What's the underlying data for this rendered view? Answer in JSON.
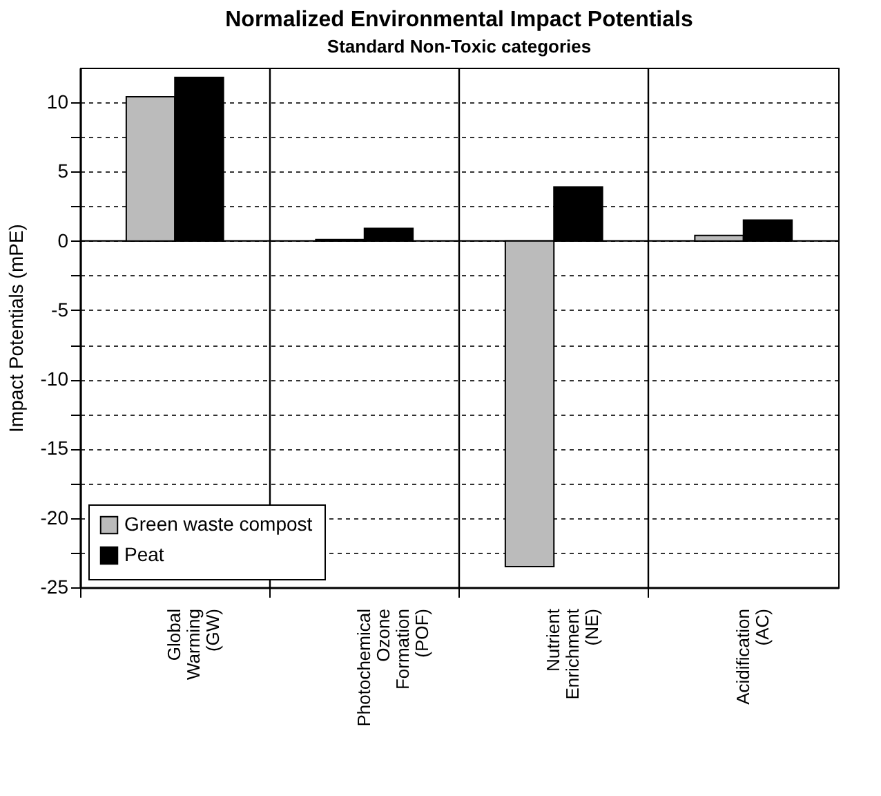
{
  "chart_data": {
    "type": "bar",
    "title": "Normalized Environmental Impact Potentials",
    "subtitle": "Standard Non-Toxic categories",
    "ylabel": "Impact Potentials (mPE)",
    "categories": [
      "Global Warming (GW)",
      "Photochemical Ozone Formation (POF)",
      "Nutrient Enrichment (NE)",
      "Acidification (AC)"
    ],
    "series": [
      {
        "name": "Green waste compost",
        "color": "#bbbbbb",
        "values": [
          10.4,
          0.1,
          -23.5,
          0.4
        ]
      },
      {
        "name": "Peat",
        "color": "#000000",
        "values": [
          11.8,
          0.9,
          3.9,
          1.5
        ]
      }
    ],
    "ylim": [
      -25,
      12.5
    ],
    "yticks": [
      -25,
      {
        "value": -22.5,
        "label": null
      },
      -20,
      {
        "value": -17.5,
        "label": null
      },
      -15,
      {
        "value": -12.5,
        "label": null
      },
      -10,
      {
        "value": -7.5,
        "label": null
      },
      -5,
      {
        "value": -2.5,
        "label": null
      },
      0,
      {
        "value": 2.5,
        "label": null
      },
      5,
      {
        "value": 7.5,
        "label": null
      },
      10
    ],
    "grid": true,
    "legend": "bottom left"
  }
}
